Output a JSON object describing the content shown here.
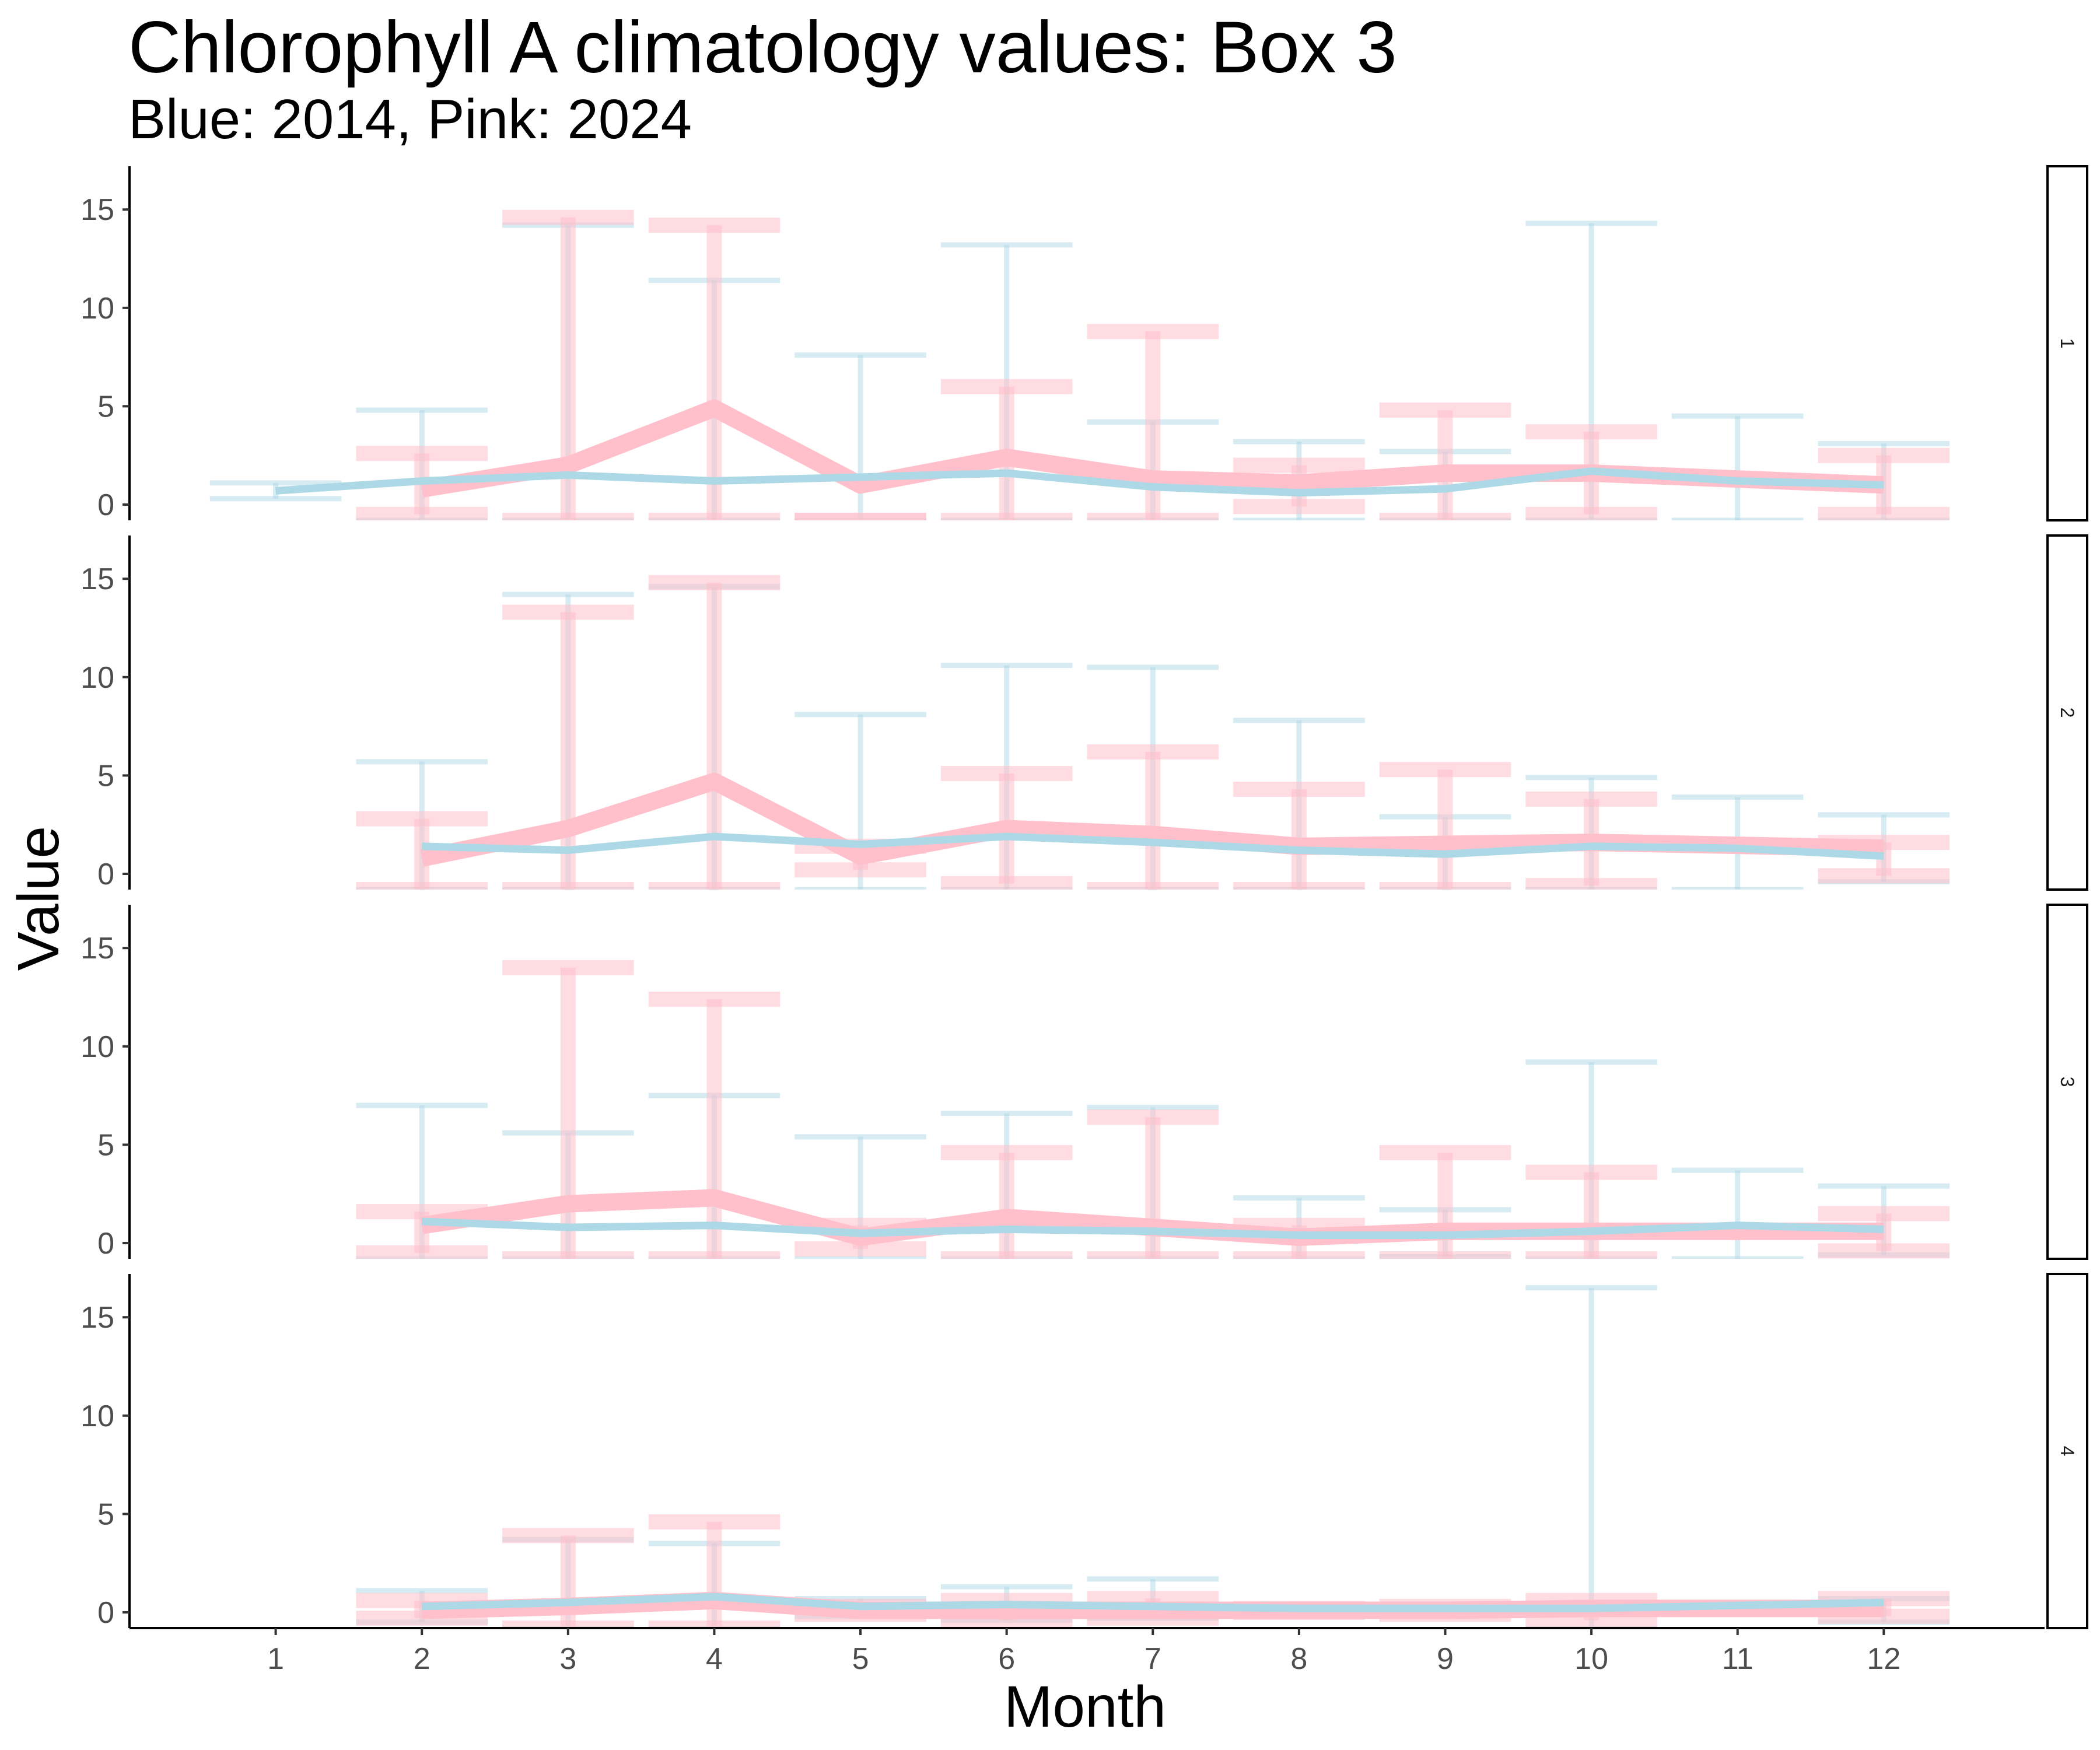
{
  "chart_data": {
    "type": "line",
    "title": "Chlorophyll A climatology values: Box 3",
    "subtitle": "Blue: 2014, Pink: 2024",
    "xlabel": "Month",
    "ylabel": "Value",
    "x_ticks": [
      1,
      2,
      3,
      4,
      5,
      6,
      7,
      8,
      9,
      10,
      11,
      12
    ],
    "y_ticks": [
      0,
      5,
      10,
      15
    ],
    "ylim": [
      -0.8,
      17.2
    ],
    "xlim": [
      0,
      13.1
    ],
    "legend": "none",
    "colors": {
      "2014": "#add8e6",
      "2024": "#ffc0cb"
    },
    "panels": [
      {
        "strip": "1",
        "series": [
          {
            "year": "2014",
            "color": "#add8e6",
            "points": [
              {
                "month": 1,
                "mean": 0.7,
                "low": 0.3,
                "high": 1.1
              },
              {
                "month": 2,
                "mean": 1.2,
                "low": -0.8,
                "high": 4.8
              },
              {
                "month": 3,
                "mean": 1.5,
                "low": -0.8,
                "high": 14.2
              },
              {
                "month": 4,
                "mean": 1.2,
                "low": -0.8,
                "high": 11.4
              },
              {
                "month": 5,
                "mean": 1.4,
                "low": -0.8,
                "high": 7.6
              },
              {
                "month": 6,
                "mean": 1.6,
                "low": -0.8,
                "high": 13.2
              },
              {
                "month": 7,
                "mean": 0.9,
                "low": -0.8,
                "high": 4.2
              },
              {
                "month": 8,
                "mean": 0.6,
                "low": -0.8,
                "high": 3.2
              },
              {
                "month": 9,
                "mean": 0.8,
                "low": -0.8,
                "high": 2.7
              },
              {
                "month": 10,
                "mean": 1.7,
                "low": -0.8,
                "high": 14.3
              },
              {
                "month": 11,
                "mean": 1.2,
                "low": -0.8,
                "high": 4.5
              },
              {
                "month": 12,
                "mean": 1.0,
                "low": -0.8,
                "high": 3.1
              }
            ]
          },
          {
            "year": "2024",
            "color": "#ffc0cb",
            "points": [
              {
                "month": 2,
                "mean": 0.8,
                "low": -0.5,
                "high": 2.6
              },
              {
                "month": 3,
                "mean": 2.0,
                "low": -0.8,
                "high": 14.6
              },
              {
                "month": 4,
                "mean": 4.9,
                "low": -0.8,
                "high": 14.2
              },
              {
                "month": 5,
                "mean": 1.0,
                "low": -0.8,
                "high": -0.8
              },
              {
                "month": 6,
                "mean": 2.4,
                "low": -0.8,
                "high": 6.0
              },
              {
                "month": 7,
                "mean": 1.3,
                "low": -0.8,
                "high": 8.8
              },
              {
                "month": 8,
                "mean": 1.1,
                "low": -0.1,
                "high": 2.0
              },
              {
                "month": 9,
                "mean": 1.6,
                "low": -0.8,
                "high": 4.8
              },
              {
                "month": 10,
                "mean": 1.6,
                "low": -0.5,
                "high": 3.7
              },
              {
                "month": 12,
                "mean": 1.0,
                "low": -0.5,
                "high": 2.5
              }
            ]
          }
        ]
      },
      {
        "strip": "2",
        "series": [
          {
            "year": "2014",
            "color": "#add8e6",
            "points": [
              {
                "month": 2,
                "mean": 1.4,
                "low": -0.8,
                "high": 5.7
              },
              {
                "month": 3,
                "mean": 1.2,
                "low": -0.8,
                "high": 14.2
              },
              {
                "month": 4,
                "mean": 1.9,
                "low": -0.8,
                "high": 14.6
              },
              {
                "month": 5,
                "mean": 1.5,
                "low": -0.8,
                "high": 8.1
              },
              {
                "month": 6,
                "mean": 1.9,
                "low": -0.8,
                "high": 10.6
              },
              {
                "month": 7,
                "mean": 1.6,
                "low": -0.8,
                "high": 10.5
              },
              {
                "month": 8,
                "mean": 1.2,
                "low": -0.8,
                "high": 7.8
              },
              {
                "month": 9,
                "mean": 1.0,
                "low": -0.8,
                "high": 2.9
              },
              {
                "month": 10,
                "mean": 1.4,
                "low": -0.8,
                "high": 4.9
              },
              {
                "month": 11,
                "mean": 1.3,
                "low": -0.8,
                "high": 3.9
              },
              {
                "month": 12,
                "mean": 0.9,
                "low": -0.4,
                "high": 3.0
              }
            ]
          },
          {
            "year": "2024",
            "color": "#ffc0cb",
            "points": [
              {
                "month": 2,
                "mean": 0.8,
                "low": -0.8,
                "high": 2.8
              },
              {
                "month": 3,
                "mean": 2.3,
                "low": -0.8,
                "high": 13.3
              },
              {
                "month": 4,
                "mean": 4.7,
                "low": -0.8,
                "high": 14.8
              },
              {
                "month": 5,
                "mean": 0.9,
                "low": 0.2,
                "high": 1.4
              },
              {
                "month": 6,
                "mean": 2.3,
                "low": -0.5,
                "high": 5.1
              },
              {
                "month": 7,
                "mean": 2.0,
                "low": -0.8,
                "high": 6.2
              },
              {
                "month": 8,
                "mean": 1.4,
                "low": -0.8,
                "high": 4.3
              },
              {
                "month": 9,
                "mean": 1.5,
                "low": -0.8,
                "high": 5.3
              },
              {
                "month": 10,
                "mean": 1.6,
                "low": -0.6,
                "high": 3.8
              },
              {
                "month": 12,
                "mean": 1.3,
                "low": -0.1,
                "high": 1.6
              }
            ]
          }
        ]
      },
      {
        "strip": "3",
        "series": [
          {
            "year": "2014",
            "color": "#add8e6",
            "points": [
              {
                "month": 2,
                "mean": 1.1,
                "low": -0.8,
                "high": 7.0
              },
              {
                "month": 3,
                "mean": 0.8,
                "low": -0.8,
                "high": 5.6
              },
              {
                "month": 4,
                "mean": 0.9,
                "low": -0.8,
                "high": 7.5
              },
              {
                "month": 5,
                "mean": 0.5,
                "low": -0.8,
                "high": 5.4
              },
              {
                "month": 6,
                "mean": 0.7,
                "low": -0.8,
                "high": 6.6
              },
              {
                "month": 7,
                "mean": 0.6,
                "low": -0.8,
                "high": 6.9
              },
              {
                "month": 8,
                "mean": 0.4,
                "low": -0.8,
                "high": 2.3
              },
              {
                "month": 9,
                "mean": 0.4,
                "low": -0.7,
                "high": 1.7
              },
              {
                "month": 10,
                "mean": 0.6,
                "low": -0.8,
                "high": 9.2
              },
              {
                "month": 11,
                "mean": 0.9,
                "low": -0.8,
                "high": 3.7
              },
              {
                "month": 12,
                "mean": 0.7,
                "low": -0.6,
                "high": 2.9
              }
            ]
          },
          {
            "year": "2024",
            "color": "#ffc0cb",
            "points": [
              {
                "month": 2,
                "mean": 0.9,
                "low": -0.5,
                "high": 1.6
              },
              {
                "month": 3,
                "mean": 2.0,
                "low": -0.8,
                "high": 14.0
              },
              {
                "month": 4,
                "mean": 2.3,
                "low": -0.8,
                "high": 12.4
              },
              {
                "month": 5,
                "mean": 0.3,
                "low": -0.3,
                "high": 0.9
              },
              {
                "month": 6,
                "mean": 1.3,
                "low": -0.8,
                "high": 4.6
              },
              {
                "month": 7,
                "mean": 0.8,
                "low": -0.8,
                "high": 6.4
              },
              {
                "month": 8,
                "mean": 0.3,
                "low": -0.8,
                "high": 0.9
              },
              {
                "month": 9,
                "mean": 0.6,
                "low": -0.8,
                "high": 4.6
              },
              {
                "month": 10,
                "mean": 0.6,
                "low": -0.8,
                "high": 3.6
              },
              {
                "month": 12,
                "mean": 0.6,
                "low": -0.4,
                "high": 1.5
              }
            ]
          }
        ]
      },
      {
        "strip": "4",
        "series": [
          {
            "year": "2014",
            "color": "#add8e6",
            "points": [
              {
                "month": 2,
                "mean": 0.3,
                "low": -0.5,
                "high": 1.1
              },
              {
                "month": 3,
                "mean": 0.5,
                "low": -0.8,
                "high": 3.7
              },
              {
                "month": 4,
                "mean": 0.8,
                "low": -0.8,
                "high": 3.5
              },
              {
                "month": 5,
                "mean": 0.3,
                "low": -0.2,
                "high": 0.7
              },
              {
                "month": 6,
                "mean": 0.4,
                "low": -0.4,
                "high": 1.3
              },
              {
                "month": 7,
                "mean": 0.3,
                "low": -0.3,
                "high": 1.7
              },
              {
                "month": 8,
                "mean": 0.2,
                "low": 0.0,
                "high": 0.4
              },
              {
                "month": 10,
                "mean": 0.2,
                "low": -0.8,
                "high": 16.5
              },
              {
                "month": 12,
                "mean": 0.5,
                "low": -0.5,
                "high": 0.7
              }
            ]
          },
          {
            "year": "2024",
            "color": "#ffc0cb",
            "points": [
              {
                "month": 2,
                "mean": 0.1,
                "low": -0.3,
                "high": 0.6
              },
              {
                "month": 3,
                "mean": 0.3,
                "low": -0.8,
                "high": 3.9
              },
              {
                "month": 4,
                "mean": 0.6,
                "low": -0.8,
                "high": 4.6
              },
              {
                "month": 5,
                "mean": 0.1,
                "low": -0.1,
                "high": 0.3
              },
              {
                "month": 6,
                "mean": 0.1,
                "low": -0.4,
                "high": 0.6
              },
              {
                "month": 7,
                "mean": 0.1,
                "low": -0.3,
                "high": 0.7
              },
              {
                "month": 8,
                "mean": 0.1,
                "low": 0.0,
                "high": 0.2
              },
              {
                "month": 9,
                "mean": 0.1,
                "low": -0.1,
                "high": 0.3
              },
              {
                "month": 10,
                "mean": 0.2,
                "low": -0.4,
                "high": 0.6
              },
              {
                "month": 12,
                "mean": 0.2,
                "low": -0.2,
                "high": 0.7
              }
            ]
          }
        ]
      }
    ]
  }
}
